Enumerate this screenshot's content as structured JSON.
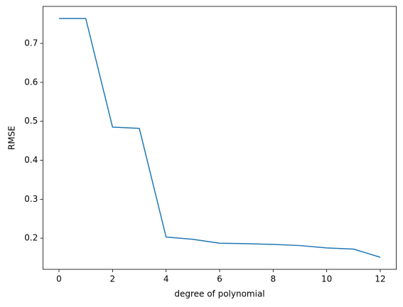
{
  "chart_data": {
    "type": "line",
    "x": [
      0,
      1,
      2,
      3,
      4,
      5,
      6,
      7,
      8,
      9,
      10,
      11,
      12
    ],
    "series": [
      {
        "color": "#1f77b4",
        "values": [
          0.764,
          0.764,
          0.485,
          0.482,
          0.203,
          0.197,
          0.187,
          0.186,
          0.184,
          0.181,
          0.175,
          0.172,
          0.151
        ]
      }
    ],
    "xlim": [
      -0.6,
      12.6
    ],
    "xticks": [
      0,
      2,
      4,
      6,
      8,
      10,
      12
    ],
    "ylim": [
      0.12,
      0.795
    ],
    "yticks": [
      0.2,
      0.3,
      0.4,
      0.5,
      0.6,
      0.7
    ],
    "xlabel": "degree of polynomial",
    "ylabel": "RMSE",
    "grid": false
  }
}
